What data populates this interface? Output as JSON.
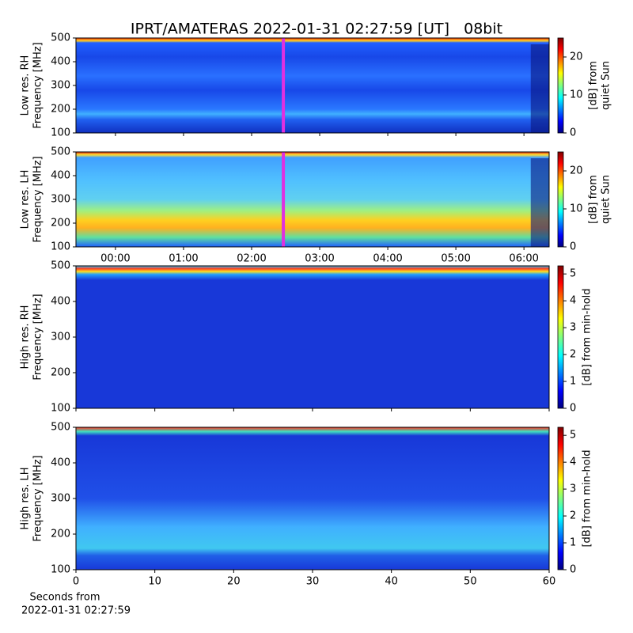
{
  "chart_data": [
    {
      "type": "heatmap",
      "title": "IPRT/AMATERAS 2022-01-31 02:27:59 [UT]   08bit",
      "ylabel": [
        "Low res. RH",
        "Frequency [MHz]"
      ],
      "ylim": [
        100,
        500
      ],
      "yticks": [
        100,
        200,
        300,
        400,
        500
      ],
      "xlim": [
        -0.58,
        6.37
      ],
      "marker_x": 2.466,
      "marker_color": "#e030e0",
      "colorbar": {
        "label": [
          "[dB] from",
          "quiet Sun"
        ],
        "lim": [
          0,
          25
        ],
        "ticks": [
          0,
          10,
          20
        ]
      }
    },
    {
      "type": "heatmap",
      "ylabel": [
        "Low res. LH",
        "Frequency [MHz]"
      ],
      "ylim": [
        100,
        500
      ],
      "yticks": [
        100,
        200,
        300,
        400,
        500
      ],
      "xlim": [
        -0.58,
        6.37
      ],
      "marker_x": 2.466,
      "marker_color": "#e030e0",
      "xticks": [
        {
          "value": 0,
          "label": "00:00"
        },
        {
          "value": 1,
          "label": "01:00"
        },
        {
          "value": 2,
          "label": "02:00"
        },
        {
          "value": 3,
          "label": "03:00"
        },
        {
          "value": 4,
          "label": "04:00"
        },
        {
          "value": 5,
          "label": "05:00"
        },
        {
          "value": 6,
          "label": "06:00"
        }
      ],
      "colorbar": {
        "label": [
          "[dB] from",
          "quiet Sun"
        ],
        "lim": [
          0,
          25
        ],
        "ticks": [
          0,
          10,
          20
        ]
      }
    },
    {
      "type": "heatmap",
      "ylabel": [
        "High res. RH",
        "Frequency [MHz]"
      ],
      "ylim": [
        100,
        500
      ],
      "yticks": [
        100,
        200,
        300,
        400,
        500
      ],
      "xlim": [
        0,
        60
      ],
      "colorbar": {
        "label": [
          "[dB] from min-hold"
        ],
        "lim": [
          0,
          5.3
        ],
        "ticks": [
          0,
          1,
          2,
          3,
          4,
          5
        ]
      }
    },
    {
      "type": "heatmap",
      "ylabel": [
        "High res. LH",
        "Frequency [MHz]"
      ],
      "ylim": [
        100,
        500
      ],
      "yticks": [
        100,
        200,
        300,
        400,
        500
      ],
      "xlim": [
        0,
        60
      ],
      "xticks": [
        0,
        10,
        20,
        30,
        40,
        50,
        60
      ],
      "xlabel": [
        "Seconds from",
        "2022-01-31 02:27:59"
      ],
      "colorbar": {
        "label": [
          "[dB] from min-hold"
        ],
        "lim": [
          0,
          5.3
        ],
        "ticks": [
          0,
          1,
          2,
          3,
          4,
          5
        ]
      }
    }
  ]
}
